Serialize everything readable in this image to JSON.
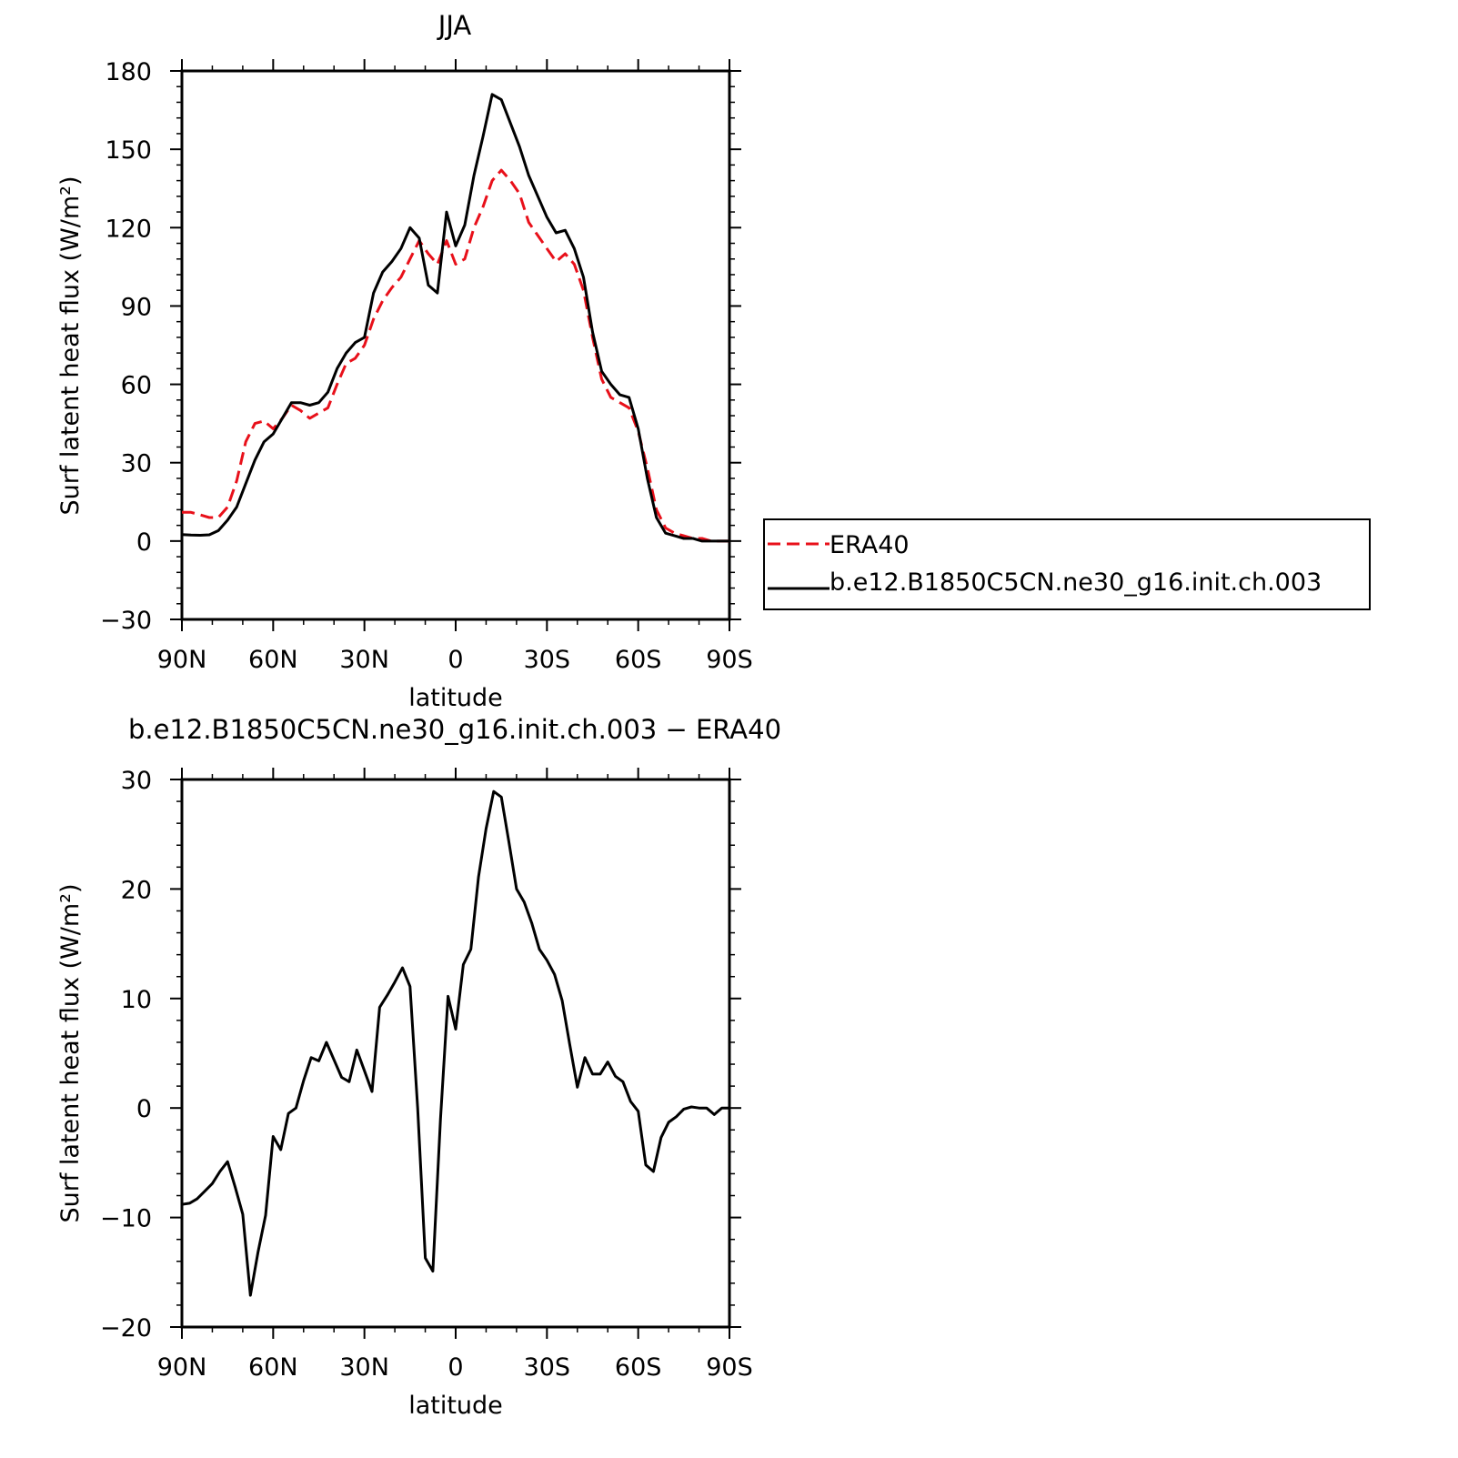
{
  "chart_data": [
    {
      "type": "line",
      "title": "JJA",
      "xlabel": "latitude",
      "ylabel": "Surf latent heat flux (W/m²)",
      "xlim": [
        90,
        -90
      ],
      "ylim": [
        -30,
        180
      ],
      "x_ticks": [
        90,
        60,
        30,
        0,
        -30,
        -60,
        -90
      ],
      "x_tick_labels": [
        "90N",
        "60N",
        "30N",
        "0",
        "30S",
        "60S",
        "90S"
      ],
      "y_ticks": [
        -30,
        0,
        30,
        60,
        90,
        120,
        150,
        180
      ],
      "y_tick_labels": [
        "−30",
        "0",
        "30",
        "60",
        "90",
        "120",
        "150",
        "180"
      ],
      "legend": "right",
      "series": [
        {
          "name": "ERA40",
          "color": "#e8101a",
          "dash": "dashed",
          "x": [
            90,
            87,
            84,
            81,
            78,
            75,
            72,
            69,
            66,
            63,
            60,
            57,
            54,
            51,
            48,
            45,
            42,
            39,
            36,
            33,
            30,
            27,
            24,
            21,
            18,
            15,
            12,
            9,
            6,
            3,
            0,
            -3,
            -6,
            -9,
            -12,
            -15,
            -18,
            -21,
            -24,
            -27,
            -30,
            -33,
            -36,
            -39,
            -42,
            -45,
            -48,
            -51,
            -54,
            -57,
            -60,
            -63,
            -66,
            -69,
            -72,
            -75,
            -78,
            -81,
            -84,
            -87,
            -90
          ],
          "y": [
            11,
            11,
            10,
            9,
            9,
            13,
            23,
            38,
            45,
            46,
            43,
            47,
            52,
            50,
            47,
            49,
            51,
            60,
            68,
            70,
            75,
            85,
            92,
            97,
            101,
            108,
            115,
            110,
            106,
            115,
            106,
            108,
            120,
            128,
            138,
            142,
            138,
            133,
            122,
            117,
            112,
            107,
            110,
            106,
            96,
            78,
            62,
            55,
            53,
            51,
            42,
            28,
            12,
            5,
            3,
            2,
            1,
            1,
            0,
            0,
            0
          ]
        },
        {
          "name": "b.e12.B1850C5CN.ne30_g16.init.ch.003",
          "color": "#000000",
          "dash": "solid",
          "x": [
            90,
            87,
            84,
            81,
            78,
            75,
            72,
            69,
            66,
            63,
            60,
            57,
            54,
            51,
            48,
            45,
            42,
            39,
            36,
            33,
            30,
            27,
            24,
            21,
            18,
            15,
            12,
            9,
            6,
            3,
            0,
            -3,
            -6,
            -9,
            -12,
            -15,
            -18,
            -21,
            -24,
            -27,
            -30,
            -33,
            -36,
            -39,
            -42,
            -45,
            -48,
            -51,
            -54,
            -57,
            -60,
            -63,
            -66,
            -69,
            -72,
            -75,
            -78,
            -81,
            -84,
            -87,
            -90
          ],
          "y": [
            2.5,
            2.3,
            2.2,
            2.4,
            4,
            8,
            13,
            22,
            31,
            38,
            41,
            47,
            53,
            53,
            52,
            53,
            57,
            66,
            72,
            76,
            78,
            95,
            103,
            107,
            112,
            120,
            116,
            98,
            95,
            126,
            113,
            121,
            140,
            155,
            171,
            169,
            160,
            151,
            140,
            132,
            124,
            118,
            119,
            112,
            101,
            80,
            65,
            60,
            56,
            55,
            43,
            24,
            9,
            3,
            2,
            1,
            1,
            0,
            0,
            0,
            0
          ]
        }
      ]
    },
    {
      "type": "line",
      "title": "b.e12.B1850C5CN.ne30_g16.init.ch.003 − ERA40",
      "xlabel": "latitude",
      "ylabel": "Surf latent heat flux (W/m²)",
      "xlim": [
        90,
        -90
      ],
      "ylim": [
        -20,
        30
      ],
      "x_ticks": [
        90,
        60,
        30,
        0,
        -30,
        -60,
        -90
      ],
      "x_tick_labels": [
        "90N",
        "60N",
        "30N",
        "0",
        "30S",
        "60S",
        "90S"
      ],
      "y_ticks": [
        -20,
        -10,
        0,
        10,
        20,
        30
      ],
      "y_tick_labels": [
        "−20",
        "−10",
        "0",
        "10",
        "20",
        "30"
      ],
      "series": [
        {
          "color": "#000000",
          "dash": "solid",
          "x": [
            90,
            87.5,
            85,
            82.5,
            80,
            77.5,
            75,
            72.5,
            70,
            67.5,
            65,
            62.5,
            60,
            57.5,
            55,
            52.5,
            50,
            47.5,
            45,
            42.5,
            40,
            37.5,
            35,
            32.5,
            30,
            27.5,
            25,
            22.5,
            20,
            17.5,
            15,
            12.5,
            10,
            7.5,
            5,
            2.5,
            0,
            -2.5,
            -5,
            -7.5,
            -10,
            -12.5,
            -15,
            -17.5,
            -20,
            -22.5,
            -25,
            -27.5,
            -30,
            -32.5,
            -35,
            -37.5,
            -40,
            -42.5,
            -45,
            -47.5,
            -50,
            -52.5,
            -55,
            -57.5,
            -60,
            -62.5,
            -65,
            -67.5,
            -70,
            -72.5,
            -75,
            -77.5,
            -80,
            -82.5,
            -85,
            -87.5,
            -90
          ],
          "y": [
            -8.8,
            -8.7,
            -8.3,
            -7.6,
            -6.9,
            -5.8,
            -4.9,
            -7.2,
            -9.7,
            -17.1,
            -13.2,
            -9.8,
            -2.6,
            -3.8,
            -0.5,
            0,
            2.5,
            4.6,
            4.3,
            6,
            4.4,
            2.8,
            2.4,
            5.3,
            3.4,
            1.5,
            9.2,
            10.3,
            11.5,
            12.8,
            11.1,
            0,
            -13.7,
            -14.9,
            -1,
            10.2,
            7.2,
            13.1,
            14.5,
            21.1,
            25.5,
            28.9,
            28.4,
            24.3,
            20,
            18.8,
            16.9,
            14.5,
            13.5,
            12.2,
            9.8,
            5.8,
            1.9,
            4.6,
            3.1,
            3.1,
            4.2,
            2.9,
            2.4,
            0.6,
            -0.3,
            -5.2,
            -5.8,
            -2.7,
            -1.3,
            -0.8,
            -0.1,
            0.1,
            0,
            0,
            -0.6,
            0,
            0
          ]
        }
      ]
    }
  ]
}
